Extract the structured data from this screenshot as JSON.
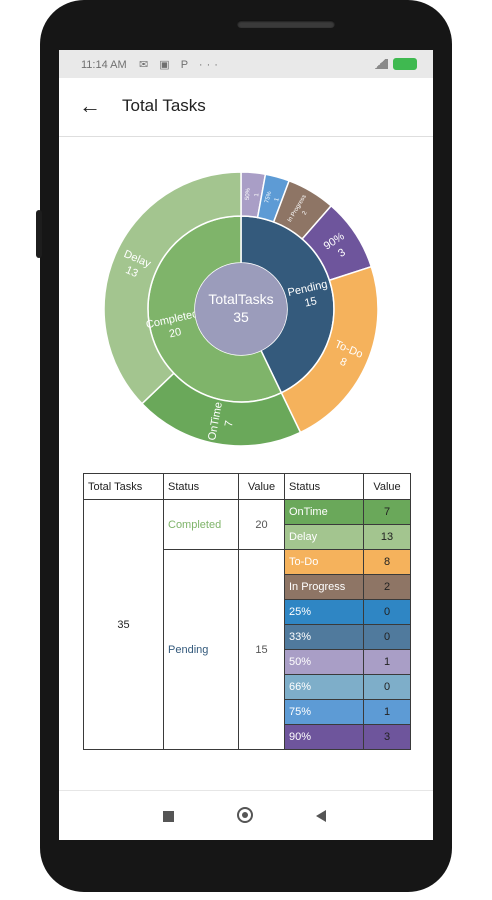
{
  "status_bar": {
    "time": "11:14 AM",
    "icons_left": "✉ ▣ P  ···",
    "icons_right": "▾ ▮"
  },
  "app_bar": {
    "title": "Total Tasks"
  },
  "center": {
    "label": "TotalTasks",
    "value": "35"
  },
  "colors": {
    "completed": "#7fb46a",
    "ontime": "#6aa85a",
    "delay": "#a3c58f",
    "pending": "#345a7c",
    "todo": "#f5b25c",
    "inprogress": "#8e7565",
    "p25": "#2f86c4",
    "p33": "#507a9d",
    "p50": "#a99ec6",
    "p66": "#7eaec9",
    "p75": "#5d9bd5",
    "p90": "#6e559c",
    "center": "#9b9cbb"
  },
  "chart_data": {
    "type": "sunburst",
    "total": 35,
    "inner": [
      {
        "name": "Completed",
        "value": 20
      },
      {
        "name": "Pending",
        "value": 15
      }
    ],
    "outer": [
      {
        "name": "OnTime",
        "value": 7,
        "parent": "Completed"
      },
      {
        "name": "Delay",
        "value": 13,
        "parent": "Completed"
      },
      {
        "name": "To-Do",
        "value": 8,
        "parent": "Pending"
      },
      {
        "name": "In Progress",
        "value": 2,
        "parent": "Pending"
      },
      {
        "name": "25%",
        "value": 0,
        "parent": "Pending"
      },
      {
        "name": "33%",
        "value": 0,
        "parent": "Pending"
      },
      {
        "name": "50%",
        "value": 1,
        "parent": "Pending"
      },
      {
        "name": "66%",
        "value": 0,
        "parent": "Pending"
      },
      {
        "name": "75%",
        "value": 1,
        "parent": "Pending"
      },
      {
        "name": "90%",
        "value": 3,
        "parent": "Pending"
      }
    ]
  },
  "table": {
    "headers": [
      "Total Tasks",
      "Status",
      "Value",
      "Status",
      "Value"
    ],
    "total": "35",
    "groups": [
      {
        "status": "Completed",
        "value": "20",
        "color": "#7fb46a",
        "rows": [
          {
            "status": "OnTime",
            "value": "7",
            "key": "ontime"
          },
          {
            "status": "Delay",
            "value": "13",
            "key": "delay"
          }
        ]
      },
      {
        "status": "Pending",
        "value": "15",
        "color": "#345a7c",
        "rows": [
          {
            "status": "To-Do",
            "value": "8",
            "key": "todo"
          },
          {
            "status": "In Progress",
            "value": "2",
            "key": "inprogress"
          },
          {
            "status": "25%",
            "value": "0",
            "key": "p25"
          },
          {
            "status": "33%",
            "value": "0",
            "key": "p33"
          },
          {
            "status": "50%",
            "value": "1",
            "key": "p50"
          },
          {
            "status": "66%",
            "value": "0",
            "key": "p66"
          },
          {
            "status": "75%",
            "value": "1",
            "key": "p75"
          },
          {
            "status": "90%",
            "value": "3",
            "key": "p90"
          }
        ]
      }
    ]
  }
}
